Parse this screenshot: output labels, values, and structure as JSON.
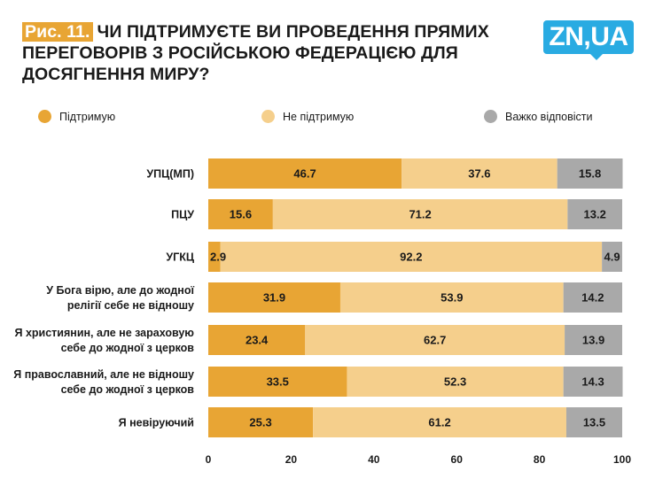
{
  "header": {
    "fig_label": "Рис. 11.",
    "title": "ЧИ ПІДТРИМУЄТЕ ВИ ПРОВЕДЕННЯ ПРЯМИХ ПЕРЕГОВОРІВ З РОСІЙСЬКОЮ ФЕДЕРАЦІЄЮ ДЛЯ ДОСЯГНЕННЯ МИРУ?",
    "logo_text": "ZN,UA",
    "logo_color": "#29abe2",
    "accent_color": "#e8a534"
  },
  "chart_data": {
    "type": "bar",
    "orientation": "horizontal",
    "stacked": true,
    "title": "Чи підтримуєте ви проведення прямих переговорів з Російською Федерацією для досягнення миру?",
    "categories": [
      [
        "УПЦ(МП)"
      ],
      [
        "ПЦУ"
      ],
      [
        "УГКЦ"
      ],
      [
        "У Бога вірю, але до жодної",
        "релігії себе не відношу"
      ],
      [
        "Я християнин, але не зараховую",
        "себе до жодної з церков"
      ],
      [
        "Я православний, але не відношу",
        "себе до жодної з церков"
      ],
      [
        "Я невіруючий"
      ]
    ],
    "series": [
      {
        "name": "Підтримую",
        "color": "#e8a534",
        "values": [
          46.7,
          15.6,
          2.9,
          31.9,
          23.4,
          33.5,
          25.3
        ]
      },
      {
        "name": "Не підтримую",
        "color": "#f5cf8c",
        "values": [
          37.6,
          71.2,
          92.2,
          53.9,
          62.7,
          52.3,
          61.2
        ]
      },
      {
        "name": "Важко відповісти",
        "color": "#a9a9a9",
        "values": [
          15.8,
          13.2,
          4.9,
          14.2,
          13.9,
          14.3,
          13.5
        ]
      }
    ],
    "xlim": [
      0,
      100
    ],
    "xticks": [
      0,
      20,
      40,
      60,
      80,
      100
    ],
    "legend_position": "top",
    "grid": false
  }
}
